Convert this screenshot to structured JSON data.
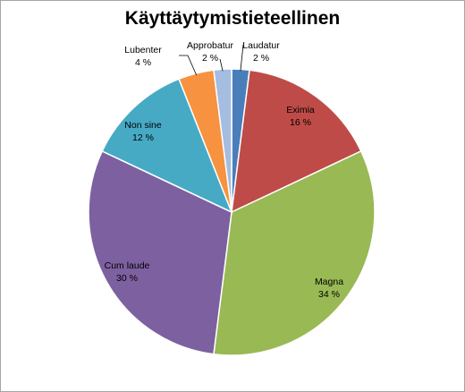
{
  "chart_data": {
    "type": "pie",
    "title": "Käyttäytymistieteellinen",
    "categories": [
      "Laudatur",
      "Eximia",
      "Magna",
      "Cum laude",
      "Non sine",
      "Lubenter",
      "Approbatur"
    ],
    "values": [
      2,
      16,
      34,
      30,
      12,
      4,
      2
    ],
    "value_labels": [
      "2 %",
      "16 %",
      "34 %",
      "30 %",
      "12 %",
      "4 %",
      "2 %"
    ],
    "colors": [
      "#4a7ebb",
      "#be4b48",
      "#98b954",
      "#7d60a0",
      "#46aac5",
      "#f69240",
      "#a4bde0"
    ],
    "legend": "none",
    "start_angle_deg": 0,
    "direction": "clockwise"
  }
}
